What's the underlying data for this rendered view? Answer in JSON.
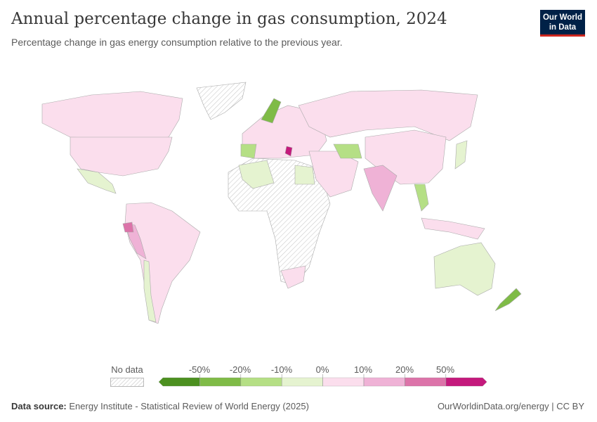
{
  "title": "Annual percentage change in gas consumption, 2024",
  "subtitle": "Percentage change in gas energy consumption relative to the previous year.",
  "logo": {
    "line1": "Our World",
    "line2": "in Data",
    "bg": "#002147",
    "accent": "#ce261e"
  },
  "legend": {
    "no_data_label": "No data",
    "ticks": [
      "-50%",
      "-20%",
      "-10%",
      "0%",
      "10%",
      "20%",
      "50%"
    ],
    "colors": [
      "#4c9020",
      "#7fbb47",
      "#b5df85",
      "#e5f3d0",
      "#fbdeed",
      "#efb2d6",
      "#dc73a9",
      "#c4197c"
    ]
  },
  "footer": {
    "source_label": "Data source:",
    "source": "Energy Institute - Statistical Review of World Energy (2025)",
    "link": "OurWorldinData.org/energy | CC BY"
  }
}
